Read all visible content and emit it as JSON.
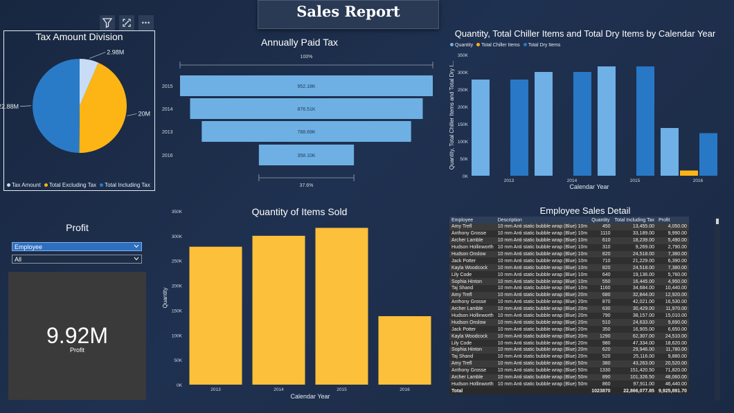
{
  "report_title": "Sales Report",
  "toolbar": {
    "filter_icon": "filter-icon",
    "focus_icon": "focus-mode-icon",
    "more_icon": "more-options-icon",
    "more_glyph": "•••"
  },
  "pie": {
    "title": "Tax Amount Division",
    "labels": [
      "2.98M",
      "20M",
      "22.88M"
    ],
    "legend": [
      "Tax Amount",
      "Total Excluding Tax",
      "Total Including Tax"
    ],
    "colors": [
      "#c9dcf5",
      "#fdb515",
      "#2a7bc7"
    ]
  },
  "funnel": {
    "title": "Annually Paid Tax",
    "top_label": "100%",
    "bottom_label": "37.6%",
    "categories": [
      "2015",
      "2014",
      "2013",
      "2016"
    ],
    "value_labels": [
      "952.18K",
      "876.51K",
      "788.69K",
      "358.10K"
    ]
  },
  "combo": {
    "title": "Quantity, Total Chiller Items and Total Dry Items by Calendar Year",
    "legend": [
      "Quantity",
      "Total Chiller Items",
      "Total Dry Items"
    ],
    "colors": [
      "#6fb0e6",
      "#fdb515",
      "#2878c6"
    ],
    "ylabel": "Quantity, Total Chiller Items and Total Dry I...",
    "xlabel": "Calendar Year",
    "yticks": [
      "350K",
      "300K",
      "250K",
      "200K",
      "150K",
      "100K",
      "50K",
      "0K"
    ]
  },
  "bar": {
    "title": "Quantity of Items Sold",
    "ylabel": "Quantity",
    "xlabel": "Calendar Year",
    "yticks": [
      "350K",
      "300K",
      "250K",
      "200K",
      "150K",
      "100K",
      "50K",
      "0K"
    ],
    "color": "#fdc03a"
  },
  "profit": {
    "title": "Profit",
    "dropdown1": "Employee",
    "dropdown2": "All",
    "kpi_value": "9.92M",
    "kpi_label": "Profit"
  },
  "table": {
    "title": "Employee Sales Detail",
    "headers": [
      "Employee",
      "Description",
      "Quantity",
      "Total Including Tax",
      "Profit"
    ],
    "rows": [
      [
        "Amy Trefl",
        "10 mm Anti static bubble wrap (Blue) 10m",
        "450",
        "13,455.00",
        "4,050.00"
      ],
      [
        "Anthony Grosse",
        "10 mm Anti static bubble wrap (Blue) 10m",
        "1110",
        "33,189.00",
        "9,990.00"
      ],
      [
        "Archer Lamble",
        "10 mm Anti static bubble wrap (Blue) 10m",
        "610",
        "18,239.00",
        "5,490.00"
      ],
      [
        "Hudson Hollinworth",
        "10 mm Anti static bubble wrap (Blue) 10m",
        "310",
        "9,269.00",
        "2,790.00"
      ],
      [
        "Hudson Onslow",
        "10 mm Anti static bubble wrap (Blue) 10m",
        "820",
        "24,518.00",
        "7,380.00"
      ],
      [
        "Jack Potter",
        "10 mm Anti static bubble wrap (Blue) 10m",
        "710",
        "21,229.00",
        "6,390.00"
      ],
      [
        "Kayla Woodcock",
        "10 mm Anti static bubble wrap (Blue) 10m",
        "820",
        "24,518.00",
        "7,380.00"
      ],
      [
        "Lily Code",
        "10 mm Anti static bubble wrap (Blue) 10m",
        "640",
        "19,136.00",
        "5,760.00"
      ],
      [
        "Sophia Hinton",
        "10 mm Anti static bubble wrap (Blue) 10m",
        "550",
        "16,445.00",
        "4,950.00"
      ],
      [
        "Taj Shand",
        "10 mm Anti static bubble wrap (Blue) 10m",
        "1160",
        "34,684.00",
        "10,440.00"
      ],
      [
        "Amy Trefl",
        "10 mm Anti static bubble wrap (Blue) 20m",
        "680",
        "32,844.00",
        "12,920.00"
      ],
      [
        "Anthony Grosse",
        "10 mm Anti static bubble wrap (Blue) 20m",
        "870",
        "42,021.00",
        "16,530.00"
      ],
      [
        "Archer Lamble",
        "10 mm Anti static bubble wrap (Blue) 20m",
        "630",
        "30,429.00",
        "11,970.00"
      ],
      [
        "Hudson Hollinworth",
        "10 mm Anti static bubble wrap (Blue) 20m",
        "790",
        "38,157.00",
        "15,010.00"
      ],
      [
        "Hudson Onslow",
        "10 mm Anti static bubble wrap (Blue) 20m",
        "510",
        "24,633.00",
        "9,690.00"
      ],
      [
        "Jack Potter",
        "10 mm Anti static bubble wrap (Blue) 20m",
        "350",
        "16,905.00",
        "6,650.00"
      ],
      [
        "Kayla Woodcock",
        "10 mm Anti static bubble wrap (Blue) 20m",
        "1290",
        "62,307.00",
        "24,510.00"
      ],
      [
        "Lily Code",
        "10 mm Anti static bubble wrap (Blue) 20m",
        "980",
        "47,334.00",
        "18,620.00"
      ],
      [
        "Sophia Hinton",
        "10 mm Anti static bubble wrap (Blue) 20m",
        "620",
        "29,946.00",
        "11,780.00"
      ],
      [
        "Taj Shand",
        "10 mm Anti static bubble wrap (Blue) 20m",
        "520",
        "25,116.00",
        "9,880.00"
      ],
      [
        "Amy Trefl",
        "10 mm Anti static bubble wrap (Blue) 50m",
        "380",
        "43,263.00",
        "20,520.00"
      ],
      [
        "Anthony Grosse",
        "10 mm Anti static bubble wrap (Blue) 50m",
        "1330",
        "151,420.50",
        "71,820.00"
      ],
      [
        "Archer Lamble",
        "10 mm Anti static bubble wrap (Blue) 50m",
        "890",
        "101,326.50",
        "48,060.00"
      ],
      [
        "Hudson Hollinworth",
        "10 mm Anti static bubble wrap (Blue) 50m",
        "860",
        "97,911.00",
        "46,440.00"
      ]
    ],
    "total": [
      "Total",
      "",
      "1023870",
      "22,866,077.85",
      "9,925,891.70"
    ]
  },
  "chart_data": [
    {
      "type": "pie",
      "title": "Tax Amount Division",
      "labels": [
        "Tax Amount",
        "Total Excluding Tax",
        "Total Including Tax"
      ],
      "values": [
        2.98,
        20,
        22.88
      ],
      "value_labels": [
        "2.98M",
        "20M",
        "22.88M"
      ],
      "legend_position": "bottom"
    },
    {
      "type": "bar",
      "subtype": "funnel",
      "title": "Annually Paid Tax",
      "categories": [
        "2015",
        "2014",
        "2013",
        "2016"
      ],
      "values": [
        952.18,
        876.51,
        788.69,
        358.1
      ],
      "value_labels": [
        "952.18K",
        "876.51K",
        "788.69K",
        "358.10K"
      ]
    },
    {
      "type": "bar",
      "title": "Quantity, Total Chiller Items and Total Dry Items by Calendar Year",
      "categories": [
        "2013",
        "2014",
        "2015",
        "2016"
      ],
      "series": [
        {
          "name": "Quantity",
          "values": [
            278000,
            300000,
            316000,
            138000
          ]
        },
        {
          "name": "Total Chiller Items",
          "values": [
            0,
            0,
            0,
            15000
          ]
        },
        {
          "name": "Total Dry Items",
          "values": [
            278000,
            300000,
            316000,
            123000
          ]
        }
      ],
      "xlabel": "Calendar Year",
      "ylabel": "Quantity, Total Chiller Items and Total Dry I...",
      "ylim": [
        0,
        350000
      ],
      "legend_position": "top-left"
    },
    {
      "type": "bar",
      "title": "Quantity of Items Sold",
      "categories": [
        "2013",
        "2014",
        "2015",
        "2016"
      ],
      "values": [
        278000,
        300000,
        316000,
        138000
      ],
      "xlabel": "Calendar Year",
      "ylabel": "Quantity",
      "ylim": [
        0,
        350000
      ]
    }
  ]
}
